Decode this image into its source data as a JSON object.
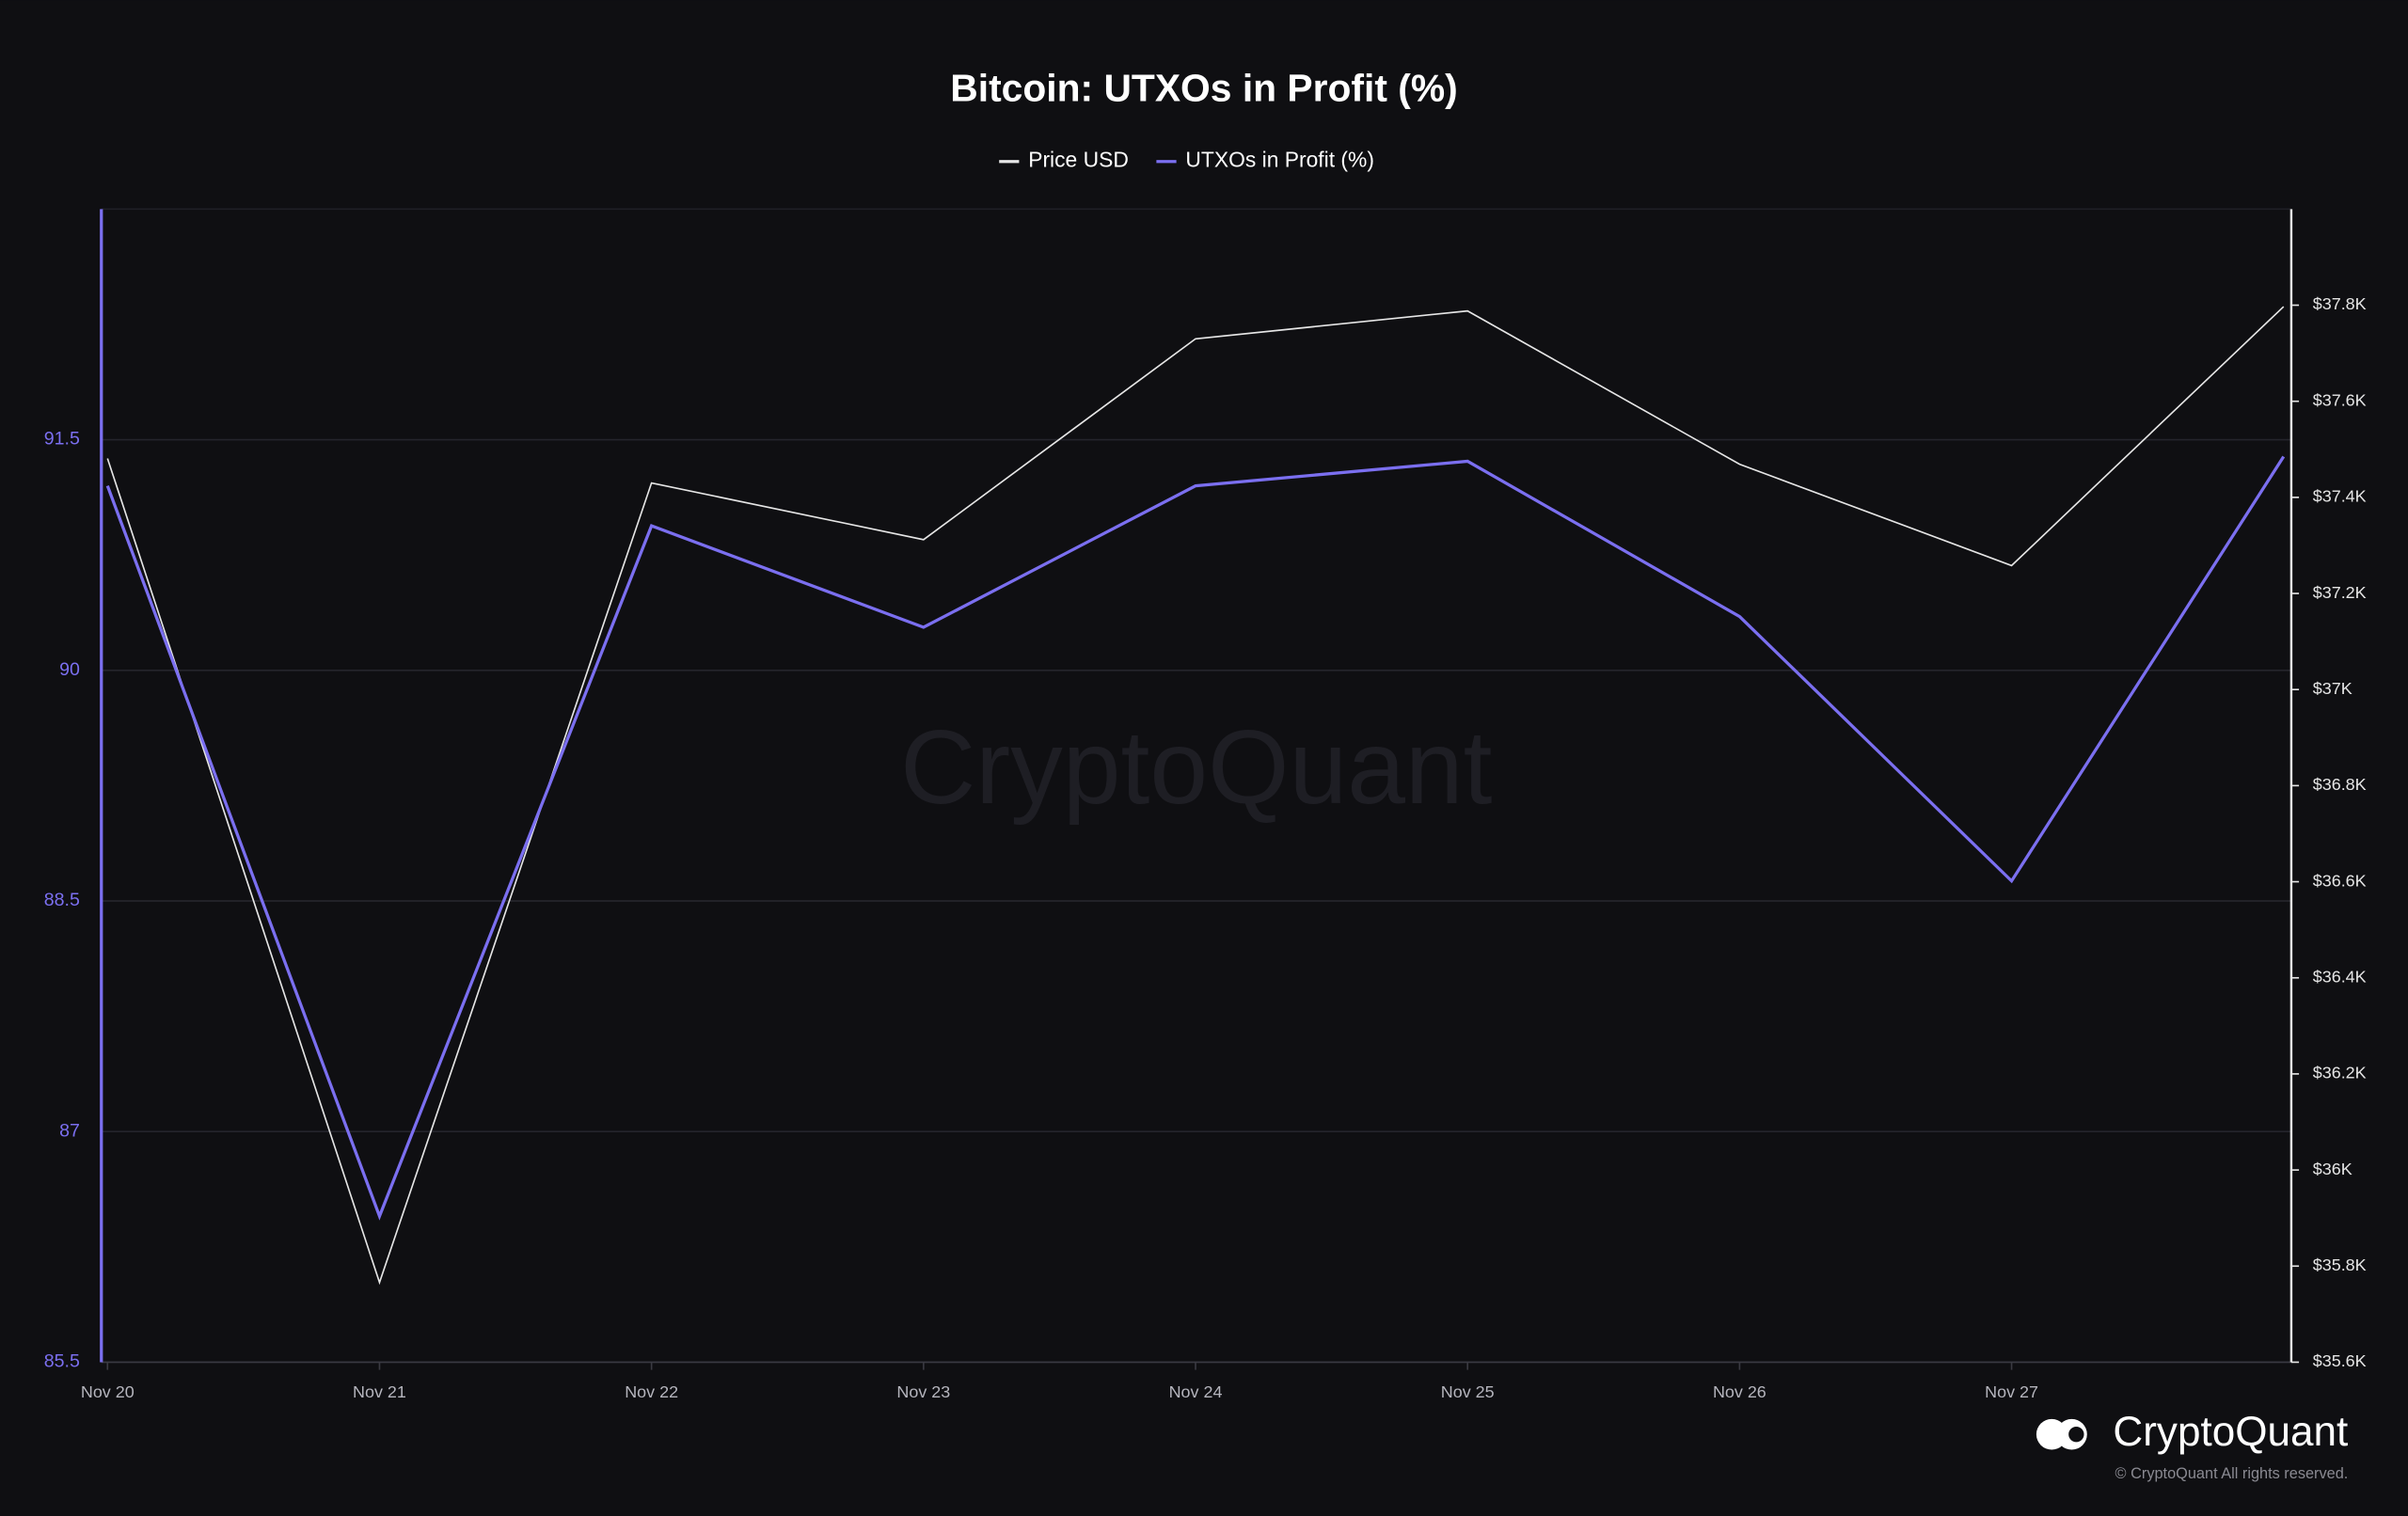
{
  "chart_data": {
    "type": "line",
    "title": "Bitcoin: UTXOs in Profit (%)",
    "categories": [
      "Nov 20",
      "Nov 21",
      "Nov 22",
      "Nov 23",
      "Nov 24",
      "Nov 25",
      "Nov 26",
      "Nov 27",
      null
    ],
    "series": [
      {
        "name": "Price USD",
        "color": "#e6e6e6",
        "axis": "y2",
        "values": [
          37481,
          35766,
          37430,
          37312,
          37730,
          37788,
          37469,
          37258,
          37797
        ]
      },
      {
        "name": "UTXOs in Profit (%)",
        "color": "#7b6ff0",
        "values": [
          91.2,
          86.45,
          90.94,
          90.28,
          91.2,
          91.36,
          90.35,
          88.63,
          91.39
        ]
      }
    ],
    "ylim": [
      85.5,
      93
    ],
    "yticks": [
      85.5,
      87,
      88.5,
      90,
      91.5
    ],
    "y2lim": [
      35600,
      38000
    ],
    "y2ticks": [
      {
        "value": 35600,
        "label": "$35.6K"
      },
      {
        "value": 35800,
        "label": "$35.8K"
      },
      {
        "value": 36000,
        "label": "$36K"
      },
      {
        "value": 36200,
        "label": "$36.2K"
      },
      {
        "value": 36400,
        "label": "$36.4K"
      },
      {
        "value": 36600,
        "label": "$36.6K"
      },
      {
        "value": 36800,
        "label": "$36.8K"
      },
      {
        "value": 37000,
        "label": "$37K"
      },
      {
        "value": 37200,
        "label": "$37.2K"
      },
      {
        "value": 37400,
        "label": "$37.4K"
      },
      {
        "value": 37600,
        "label": "$37.6K"
      },
      {
        "value": 37800,
        "label": "$37.8K"
      }
    ],
    "grid": true,
    "legend": "top"
  },
  "watermark": "CryptoQuant",
  "brand": "CryptoQuant",
  "copyright": "© CryptoQuant All rights reserved."
}
